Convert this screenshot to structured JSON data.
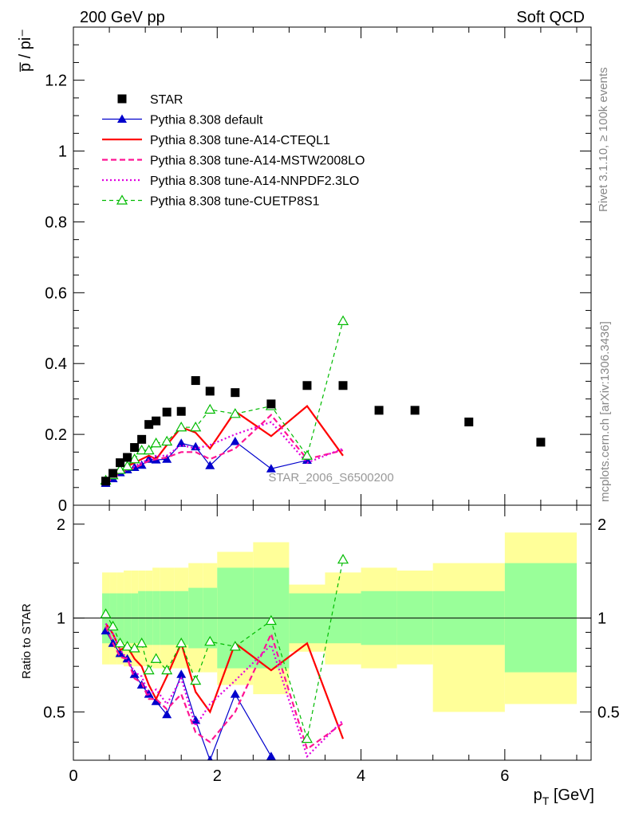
{
  "header": {
    "left": "200 GeV pp",
    "right": "Soft QCD"
  },
  "side_labels": {
    "rivet": "Rivet 3.1.10, ≥ 100k events",
    "mcplots": "mcplots.cern.ch [arXiv:1306.3436]"
  },
  "watermark": "STAR_2006_S6500200",
  "colors": {
    "star": "#000000",
    "default": "#0000cc",
    "cteql1": "#ff0000",
    "mstw": "#ff1493",
    "nnpdf": "#e000e0",
    "cuetp8s1": "#00bb00",
    "band_outer": "#ffff99",
    "band_inner": "#99ff99"
  },
  "chart_data": [
    {
      "type": "scatter",
      "panel": "main",
      "ylabel": "p̅ / pi⁻",
      "xlim": [
        0,
        7.2
      ],
      "ylim": [
        0,
        1.35
      ],
      "y_ticks": [
        "0.2",
        "0.4",
        "0.6",
        "0.8",
        "1",
        "1.2"
      ],
      "y_tick_values": [
        0.2,
        0.4,
        0.6,
        0.8,
        1.0,
        1.2
      ],
      "legend_placement": "top-left",
      "series": [
        {
          "name": "STAR",
          "key": "star",
          "style": "square",
          "points": [
            [
              0.45,
              0.068
            ],
            [
              0.55,
              0.09
            ],
            [
              0.65,
              0.12
            ],
            [
              0.75,
              0.135
            ],
            [
              0.85,
              0.163
            ],
            [
              0.95,
              0.186
            ],
            [
              1.05,
              0.228
            ],
            [
              1.15,
              0.238
            ],
            [
              1.3,
              0.263
            ],
            [
              1.5,
              0.265
            ],
            [
              1.7,
              0.352
            ],
            [
              1.9,
              0.322
            ],
            [
              2.25,
              0.318
            ],
            [
              2.75,
              0.286
            ],
            [
              3.25,
              0.338
            ],
            [
              3.75,
              0.338
            ],
            [
              4.25,
              0.268
            ],
            [
              4.75,
              0.268
            ],
            [
              5.5,
              0.235
            ],
            [
              6.5,
              0.178
            ]
          ]
        },
        {
          "name": "Pythia 8.308 default",
          "key": "default",
          "style": "solid-triangle",
          "points": [
            [
              0.45,
              0.062
            ],
            [
              0.55,
              0.075
            ],
            [
              0.65,
              0.092
            ],
            [
              0.75,
              0.1
            ],
            [
              0.85,
              0.107
            ],
            [
              0.95,
              0.113
            ],
            [
              1.05,
              0.13
            ],
            [
              1.15,
              0.128
            ],
            [
              1.3,
              0.13
            ],
            [
              1.5,
              0.175
            ],
            [
              1.7,
              0.165
            ],
            [
              1.9,
              0.112
            ],
            [
              2.25,
              0.18
            ],
            [
              2.75,
              0.103
            ],
            [
              3.25,
              0.127
            ]
          ]
        },
        {
          "name": "Pythia 8.308 tune-A14-CTEQL1",
          "key": "cteql1",
          "style": "solid",
          "points": [
            [
              0.45,
              0.065
            ],
            [
              0.55,
              0.08
            ],
            [
              0.65,
              0.095
            ],
            [
              0.75,
              0.11
            ],
            [
              0.85,
              0.12
            ],
            [
              0.95,
              0.13
            ],
            [
              1.05,
              0.14
            ],
            [
              1.15,
              0.13
            ],
            [
              1.3,
              0.17
            ],
            [
              1.5,
              0.22
            ],
            [
              1.7,
              0.205
            ],
            [
              1.9,
              0.16
            ],
            [
              2.25,
              0.265
            ],
            [
              2.75,
              0.195
            ],
            [
              3.25,
              0.28
            ],
            [
              3.75,
              0.14
            ]
          ]
        },
        {
          "name": "Pythia 8.308 tune-A14-MSTW2008LO",
          "key": "mstw",
          "style": "dashed",
          "points": [
            [
              0.45,
              0.064
            ],
            [
              0.55,
              0.075
            ],
            [
              0.65,
              0.09
            ],
            [
              0.75,
              0.1
            ],
            [
              0.85,
              0.105
            ],
            [
              0.95,
              0.115
            ],
            [
              1.05,
              0.125
            ],
            [
              1.15,
              0.13
            ],
            [
              1.3,
              0.135
            ],
            [
              1.5,
              0.15
            ],
            [
              1.7,
              0.15
            ],
            [
              1.9,
              0.13
            ],
            [
              2.25,
              0.16
            ],
            [
              2.75,
              0.255
            ],
            [
              3.25,
              0.13
            ],
            [
              3.75,
              0.155
            ]
          ]
        },
        {
          "name": "Pythia 8.308 tune-A14-NNPDF2.3LO",
          "key": "nnpdf",
          "style": "dotted",
          "points": [
            [
              0.45,
              0.065
            ],
            [
              0.55,
              0.08
            ],
            [
              0.65,
              0.095
            ],
            [
              0.75,
              0.1
            ],
            [
              0.85,
              0.11
            ],
            [
              0.95,
              0.12
            ],
            [
              1.05,
              0.13
            ],
            [
              1.15,
              0.14
            ],
            [
              1.3,
              0.14
            ],
            [
              1.5,
              0.17
            ],
            [
              1.7,
              0.16
            ],
            [
              1.9,
              0.17
            ],
            [
              2.25,
              0.2
            ],
            [
              2.75,
              0.235
            ],
            [
              3.25,
              0.12
            ],
            [
              3.75,
              0.16
            ]
          ]
        },
        {
          "name": "Pythia 8.308 tune-CUETP8S1",
          "key": "cuetp8s1",
          "style": "dashed-open-triangle",
          "points": [
            [
              0.45,
              0.07
            ],
            [
              0.55,
              0.085
            ],
            [
              0.65,
              0.1
            ],
            [
              0.75,
              0.11
            ],
            [
              0.85,
              0.13
            ],
            [
              0.95,
              0.155
            ],
            [
              1.05,
              0.155
            ],
            [
              1.15,
              0.175
            ],
            [
              1.3,
              0.18
            ],
            [
              1.5,
              0.22
            ],
            [
              1.7,
              0.22
            ],
            [
              1.9,
              0.27
            ],
            [
              2.25,
              0.258
            ],
            [
              2.75,
              0.28
            ],
            [
              3.25,
              0.14
            ],
            [
              3.75,
              0.52
            ]
          ]
        }
      ]
    },
    {
      "type": "scatter",
      "panel": "ratio",
      "xlabel": "p_T [GeV]",
      "ylabel": "Ratio to STAR",
      "xlim": [
        0,
        7.2
      ],
      "ylim": [
        0.35,
        2.3
      ],
      "log_y": true,
      "reference_line": 1,
      "x_ticks": [
        "0",
        "2",
        "4",
        "6"
      ],
      "x_tick_values": [
        0,
        2,
        4,
        6
      ],
      "y_ticks": [
        "0.5",
        "1",
        "2"
      ],
      "y_tick_values": [
        0.5,
        1,
        2
      ],
      "bands": {
        "x_edges": [
          0.4,
          0.5,
          0.6,
          0.7,
          0.8,
          0.9,
          1.0,
          1.1,
          1.2,
          1.4,
          1.6,
          1.8,
          2.0,
          2.5,
          3.0,
          3.5,
          4.0,
          4.5,
          5.0,
          6.0,
          7.0
        ],
        "outer_hi": [
          1.4,
          1.4,
          1.4,
          1.42,
          1.42,
          1.42,
          1.42,
          1.45,
          1.45,
          1.45,
          1.5,
          1.5,
          1.63,
          1.75,
          1.28,
          1.4,
          1.45,
          1.42,
          1.5,
          1.88
        ],
        "outer_lo": [
          0.71,
          0.71,
          0.71,
          0.7,
          0.7,
          0.7,
          0.7,
          0.69,
          0.69,
          0.69,
          0.67,
          0.67,
          0.61,
          0.57,
          0.78,
          0.71,
          0.69,
          0.71,
          0.5,
          0.53
        ],
        "inner_hi": [
          1.2,
          1.2,
          1.2,
          1.2,
          1.2,
          1.22,
          1.22,
          1.22,
          1.22,
          1.22,
          1.25,
          1.25,
          1.45,
          1.45,
          1.2,
          1.2,
          1.22,
          1.22,
          1.22,
          1.5
        ],
        "inner_lo": [
          0.83,
          0.83,
          0.83,
          0.83,
          0.83,
          0.82,
          0.82,
          0.82,
          0.82,
          0.82,
          0.8,
          0.8,
          0.69,
          0.69,
          0.83,
          0.83,
          0.82,
          0.82,
          0.82,
          0.67
        ]
      },
      "series": [
        {
          "name": "Pythia 8.308 default",
          "key": "default",
          "style": "solid-triangle",
          "points": [
            [
              0.45,
              0.91
            ],
            [
              0.55,
              0.83
            ],
            [
              0.65,
              0.77
            ],
            [
              0.75,
              0.74
            ],
            [
              0.85,
              0.66
            ],
            [
              0.95,
              0.61
            ],
            [
              1.05,
              0.57
            ],
            [
              1.15,
              0.54
            ],
            [
              1.3,
              0.49
            ],
            [
              1.5,
              0.66
            ],
            [
              1.7,
              0.47
            ],
            [
              1.9,
              0.35
            ],
            [
              2.25,
              0.57
            ],
            [
              2.75,
              0.36
            ]
          ]
        },
        {
          "name": "Pythia 8.308 tune-A14-CTEQL1",
          "key": "cteql1",
          "style": "solid",
          "points": [
            [
              0.45,
              0.96
            ],
            [
              0.55,
              0.89
            ],
            [
              0.65,
              0.79
            ],
            [
              0.75,
              0.81
            ],
            [
              0.85,
              0.74
            ],
            [
              0.95,
              0.7
            ],
            [
              1.05,
              0.61
            ],
            [
              1.15,
              0.55
            ],
            [
              1.3,
              0.65
            ],
            [
              1.5,
              0.83
            ],
            [
              1.7,
              0.58
            ],
            [
              1.9,
              0.5
            ],
            [
              2.25,
              0.83
            ],
            [
              2.75,
              0.68
            ],
            [
              3.25,
              0.83
            ],
            [
              3.75,
              0.41
            ]
          ]
        },
        {
          "name": "Pythia 8.308 tune-A14-MSTW2008LO",
          "key": "mstw",
          "style": "dashed",
          "points": [
            [
              0.45,
              0.94
            ],
            [
              0.55,
              0.83
            ],
            [
              0.65,
              0.75
            ],
            [
              0.75,
              0.74
            ],
            [
              0.85,
              0.64
            ],
            [
              0.95,
              0.62
            ],
            [
              1.05,
              0.55
            ],
            [
              1.15,
              0.55
            ],
            [
              1.3,
              0.51
            ],
            [
              1.5,
              0.57
            ],
            [
              1.7,
              0.43
            ],
            [
              1.9,
              0.4
            ],
            [
              2.25,
              0.5
            ],
            [
              2.75,
              0.89
            ],
            [
              3.25,
              0.38
            ],
            [
              3.75,
              0.46
            ]
          ]
        },
        {
          "name": "Pythia 8.308 tune-A14-NNPDF2.3LO",
          "key": "nnpdf",
          "style": "dotted",
          "points": [
            [
              0.45,
              0.96
            ],
            [
              0.55,
              0.89
            ],
            [
              0.65,
              0.79
            ],
            [
              0.75,
              0.74
            ],
            [
              0.85,
              0.67
            ],
            [
              0.95,
              0.65
            ],
            [
              1.05,
              0.57
            ],
            [
              1.15,
              0.59
            ],
            [
              1.3,
              0.53
            ],
            [
              1.5,
              0.64
            ],
            [
              1.7,
              0.45
            ],
            [
              1.9,
              0.53
            ],
            [
              2.25,
              0.63
            ],
            [
              2.75,
              0.82
            ],
            [
              3.25,
              0.36
            ],
            [
              3.75,
              0.47
            ]
          ]
        },
        {
          "name": "Pythia 8.308 tune-CUETP8S1",
          "key": "cuetp8s1",
          "style": "dashed-open-triangle",
          "points": [
            [
              0.45,
              1.03
            ],
            [
              0.55,
              0.94
            ],
            [
              0.65,
              0.83
            ],
            [
              0.75,
              0.81
            ],
            [
              0.85,
              0.8
            ],
            [
              0.95,
              0.83
            ],
            [
              1.05,
              0.68
            ],
            [
              1.15,
              0.74
            ],
            [
              1.3,
              0.68
            ],
            [
              1.5,
              0.83
            ],
            [
              1.7,
              0.63
            ],
            [
              1.9,
              0.84
            ],
            [
              2.25,
              0.81
            ],
            [
              2.75,
              0.98
            ],
            [
              3.25,
              0.41
            ],
            [
              3.75,
              1.54
            ]
          ]
        }
      ]
    }
  ]
}
